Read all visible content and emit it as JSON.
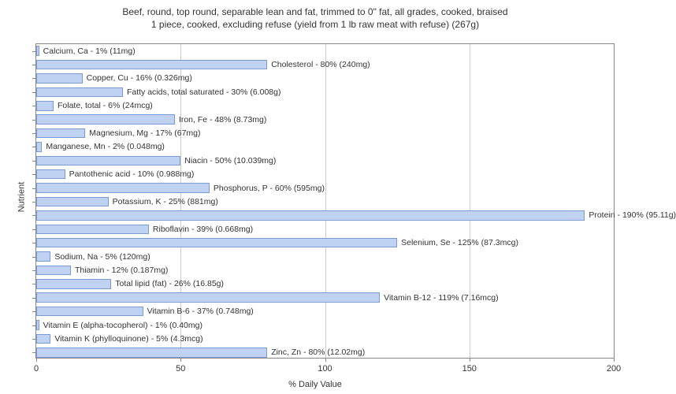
{
  "chart": {
    "type": "bar-horizontal",
    "title_line1": "Beef, round, top round, separable lean and fat, trimmed to 0\" fat, all grades, cooked, braised",
    "title_line2": "1 piece, cooked, excluding refuse (yield from 1 lb raw meat with refuse) (267g)",
    "title_fontsize": 12,
    "xlabel": "% Daily Value",
    "ylabel": "Nutrient",
    "label_fontsize": 11,
    "xlim": [
      0,
      200
    ],
    "xticks": [
      0,
      50,
      100,
      150,
      200
    ],
    "bar_color": "#bfd2f2",
    "bar_border_color": "#7a9ad4",
    "background_color": "#ffffff",
    "grid_color": "#cccccc",
    "axis_color": "#888888",
    "bar_label_fontsize": 10.5,
    "nutrients": [
      {
        "label": "Calcium, Ca - 1% (11mg)",
        "value": 1
      },
      {
        "label": "Cholesterol - 80% (240mg)",
        "value": 80
      },
      {
        "label": "Copper, Cu - 16% (0.326mg)",
        "value": 16
      },
      {
        "label": "Fatty acids, total saturated - 30% (6.008g)",
        "value": 30
      },
      {
        "label": "Folate, total - 6% (24mcg)",
        "value": 6
      },
      {
        "label": "Iron, Fe - 48% (8.73mg)",
        "value": 48
      },
      {
        "label": "Magnesium, Mg - 17% (67mg)",
        "value": 17
      },
      {
        "label": "Manganese, Mn - 2% (0.048mg)",
        "value": 2
      },
      {
        "label": "Niacin - 50% (10.039mg)",
        "value": 50
      },
      {
        "label": "Pantothenic acid - 10% (0.988mg)",
        "value": 10
      },
      {
        "label": "Phosphorus, P - 60% (595mg)",
        "value": 60
      },
      {
        "label": "Potassium, K - 25% (881mg)",
        "value": 25
      },
      {
        "label": "Protein - 190% (95.11g)",
        "value": 190
      },
      {
        "label": "Riboflavin - 39% (0.668mg)",
        "value": 39
      },
      {
        "label": "Selenium, Se - 125% (87.3mcg)",
        "value": 125
      },
      {
        "label": "Sodium, Na - 5% (120mg)",
        "value": 5
      },
      {
        "label": "Thiamin - 12% (0.187mg)",
        "value": 12
      },
      {
        "label": "Total lipid (fat) - 26% (16.85g)",
        "value": 26
      },
      {
        "label": "Vitamin B-12 - 119% (7.16mcg)",
        "value": 119
      },
      {
        "label": "Vitamin B-6 - 37% (0.748mg)",
        "value": 37
      },
      {
        "label": "Vitamin E (alpha-tocopherol) - 1% (0.40mg)",
        "value": 1
      },
      {
        "label": "Vitamin K (phylloquinone) - 5% (4.3mcg)",
        "value": 5
      },
      {
        "label": "Zinc, Zn - 80% (12.02mg)",
        "value": 80
      }
    ]
  }
}
